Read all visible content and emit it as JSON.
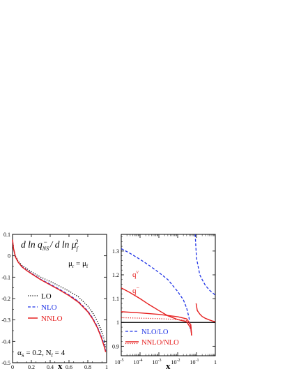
{
  "chart_data": [
    {
      "type": "line",
      "title": "d ln q_NS^- / d ln μ_f^2",
      "title_parts": {
        "main": "d ln q",
        "sub1": "NS",
        "sup1": "−",
        "mid": " / d ln μ",
        "sub2": "f",
        "sup2": "2"
      },
      "note": {
        "main": "μ",
        "sub1": "r",
        "eq": " = μ",
        "sub2": "f"
      },
      "params": {
        "a": "α",
        "a_sub": "S",
        "a_val": " = 0.2, N",
        "n_sub": "f",
        "n_val": " = 4"
      },
      "xlabel": "x",
      "ylabel": "",
      "xlim": [
        0,
        1
      ],
      "ylim": [
        -0.5,
        0.1
      ],
      "xticks": [
        "0",
        "0.2",
        "0.4",
        "0.6",
        "0.8",
        "1"
      ],
      "yticks": [
        "0.1",
        "0",
        "-0.1",
        "-0.2",
        "-0.3",
        "-0.4",
        "-0.5"
      ],
      "legend_placement": "left",
      "series": [
        {
          "name": "LO",
          "color": "#000000",
          "dash": "dotted",
          "x": [
            0.0001,
            0.01,
            0.03,
            0.06,
            0.1,
            0.15,
            0.2,
            0.3,
            0.4,
            0.5,
            0.6,
            0.7,
            0.8,
            0.85,
            0.9,
            0.94,
            0.97,
            0.99
          ],
          "y": [
            0.06,
            0.035,
            0.0,
            -0.025,
            -0.045,
            -0.06,
            -0.075,
            -0.1,
            -0.12,
            -0.142,
            -0.165,
            -0.192,
            -0.235,
            -0.265,
            -0.305,
            -0.345,
            -0.385,
            -0.43
          ]
        },
        {
          "name": "NLO",
          "color": "#1f33e6",
          "dash": "dashed",
          "x": [
            0.0001,
            0.01,
            0.03,
            0.06,
            0.1,
            0.15,
            0.2,
            0.3,
            0.4,
            0.5,
            0.6,
            0.7,
            0.8,
            0.85,
            0.9,
            0.94,
            0.97,
            0.99
          ],
          "y": [
            0.07,
            0.035,
            -0.005,
            -0.03,
            -0.05,
            -0.067,
            -0.082,
            -0.11,
            -0.133,
            -0.157,
            -0.183,
            -0.213,
            -0.258,
            -0.29,
            -0.33,
            -0.372,
            -0.41,
            -0.445
          ]
        },
        {
          "name": "NNLO",
          "color": "#e62020",
          "dash": "solid",
          "x": [
            0.0001,
            0.01,
            0.03,
            0.06,
            0.1,
            0.15,
            0.2,
            0.3,
            0.4,
            0.5,
            0.6,
            0.7,
            0.8,
            0.85,
            0.9,
            0.94,
            0.97,
            0.99
          ],
          "y": [
            0.075,
            0.035,
            -0.005,
            -0.03,
            -0.052,
            -0.069,
            -0.084,
            -0.112,
            -0.136,
            -0.16,
            -0.186,
            -0.217,
            -0.262,
            -0.294,
            -0.335,
            -0.378,
            -0.418,
            -0.45
          ]
        }
      ]
    },
    {
      "type": "line",
      "title": "",
      "xlabel": "x",
      "ylabel": "",
      "xscale": "log",
      "xlim": [
        1e-05,
        1
      ],
      "ylim": [
        0.86,
        1.37
      ],
      "xticks_exp": [
        "-5",
        "-4",
        "-3",
        "-2",
        "-1"
      ],
      "xtick_last": "1",
      "yticks": [
        "1.3",
        "1.2",
        "1.1",
        "1",
        "0.9"
      ],
      "reference_line": 1,
      "legend_placement": "bottom",
      "annotations": [
        {
          "text": "q",
          "sup": "v",
          "color": "#e62020"
        },
        {
          "text": "q",
          "sup": "−",
          "color": "#e62020"
        }
      ],
      "series": [
        {
          "name": "NLO/LO",
          "color": "#1f33e6",
          "dash": "dashed",
          "x": [
            1e-05,
            3e-05,
            0.0001,
            0.0003,
            0.001,
            0.003,
            0.01,
            0.02,
            0.03,
            0.04,
            0.048
          ],
          "y": [
            1.31,
            1.29,
            1.265,
            1.24,
            1.21,
            1.18,
            1.13,
            1.095,
            1.06,
            1.02,
            0.965
          ]
        },
        {
          "name": "NLO/LO",
          "color": "#1f33e6",
          "dash": "dashed",
          "x": [
            0.085,
            0.1,
            0.15,
            0.2,
            0.3,
            0.5,
            0.7,
            1.0
          ],
          "y": [
            1.37,
            1.27,
            1.2,
            1.18,
            1.155,
            1.135,
            1.125,
            1.115
          ]
        },
        {
          "name": "NNLO/NLO (q^v)",
          "color": "#e62020",
          "dash": "solid",
          "x": [
            1e-05,
            3e-05,
            0.0001,
            0.0003,
            0.001,
            0.003,
            0.01,
            0.03,
            0.05,
            0.055
          ],
          "y": [
            1.145,
            1.125,
            1.1,
            1.075,
            1.05,
            1.028,
            1.012,
            1.003,
            0.975,
            0.945
          ]
        },
        {
          "name": "NNLO/NLO (q^-)",
          "color": "#e62020",
          "dash": "solid",
          "x": [
            1e-05,
            0.0001,
            0.001,
            0.01,
            0.03,
            0.05,
            0.055
          ],
          "y": [
            1.045,
            1.04,
            1.034,
            1.024,
            1.015,
            0.99,
            0.945
          ]
        },
        {
          "name": "NNLO/NLO",
          "color": "#e62020",
          "dash": "dotted",
          "x": [
            1e-05,
            0.0001,
            0.001,
            0.01,
            0.03,
            0.05,
            0.055
          ],
          "y": [
            1.02,
            1.018,
            1.016,
            1.012,
            1.008,
            0.985,
            0.945
          ]
        },
        {
          "name": "NNLO/NLO",
          "color": "#e62020",
          "dash": "solid",
          "x": [
            0.095,
            0.11,
            0.15,
            0.2,
            0.3,
            0.5,
            0.7,
            1.0
          ],
          "y": [
            1.08,
            1.05,
            1.035,
            1.025,
            1.017,
            1.01,
            1.006,
            1.003
          ]
        }
      ]
    }
  ]
}
